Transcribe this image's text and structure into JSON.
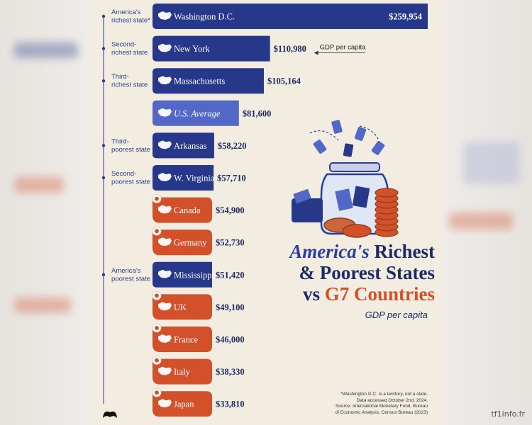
{
  "chart_data": {
    "type": "bar",
    "orientation": "horizontal",
    "title_parts": [
      "America's",
      "Richest",
      "& Poorest States",
      "vs",
      "G7 Countries"
    ],
    "subtitle": "GDP per capita",
    "categories": [
      "Washington D.C.",
      "New York",
      "Massachusetts",
      "U.S. Average",
      "Arkansas",
      "W. Virginia",
      "Canada",
      "Germany",
      "Mississippi",
      "UK",
      "France",
      "Italy",
      "Japan"
    ],
    "values": [
      259954,
      110980,
      105164,
      81600,
      58220,
      57710,
      54900,
      52730,
      51420,
      49100,
      46000,
      38330,
      33810
    ],
    "value_labels": [
      "$259,954",
      "$110,980",
      "$105,164",
      "$81,600",
      "$58,220",
      "$57,710",
      "$54,900",
      "$52,730",
      "$51,420",
      "$49,100",
      "$46,000",
      "$38,330",
      "$33,810"
    ],
    "groups": [
      "state",
      "state",
      "state",
      "average",
      "state",
      "state",
      "g7",
      "g7",
      "state",
      "g7",
      "g7",
      "g7",
      "g7"
    ],
    "annotations": [
      {
        "lines": [
          "America's",
          "richest state*"
        ],
        "bar": 0
      },
      {
        "lines": [
          "Second-",
          "richest state"
        ],
        "bar": 1
      },
      {
        "lines": [
          "Third-",
          "richest state"
        ],
        "bar": 2
      },
      {
        "lines": [
          "Third-",
          "poorest state"
        ],
        "bar": 4
      },
      {
        "lines": [
          "Second-",
          "poorest state"
        ],
        "bar": 5
      },
      {
        "lines": [
          "America's",
          "poorest state"
        ],
        "bar": 8
      }
    ],
    "callout": "GDP per capita",
    "colors": {
      "state": "#27388a",
      "average": "#5267c6",
      "g7": "#d2502a"
    }
  },
  "footnotes": [
    "*Washington D.C. is a territory, not a state.",
    "Data accessed October 2nd, 2024.",
    "Source: International Monetary Fund, Bureau",
    "of Economic Analysis, Census Bureau (2023)"
  ],
  "watermark": "tf1info.fr",
  "icons": [
    "jar-of-money-icon",
    "map-silhouette-icon",
    "flag-icon",
    "logo-icon"
  ]
}
